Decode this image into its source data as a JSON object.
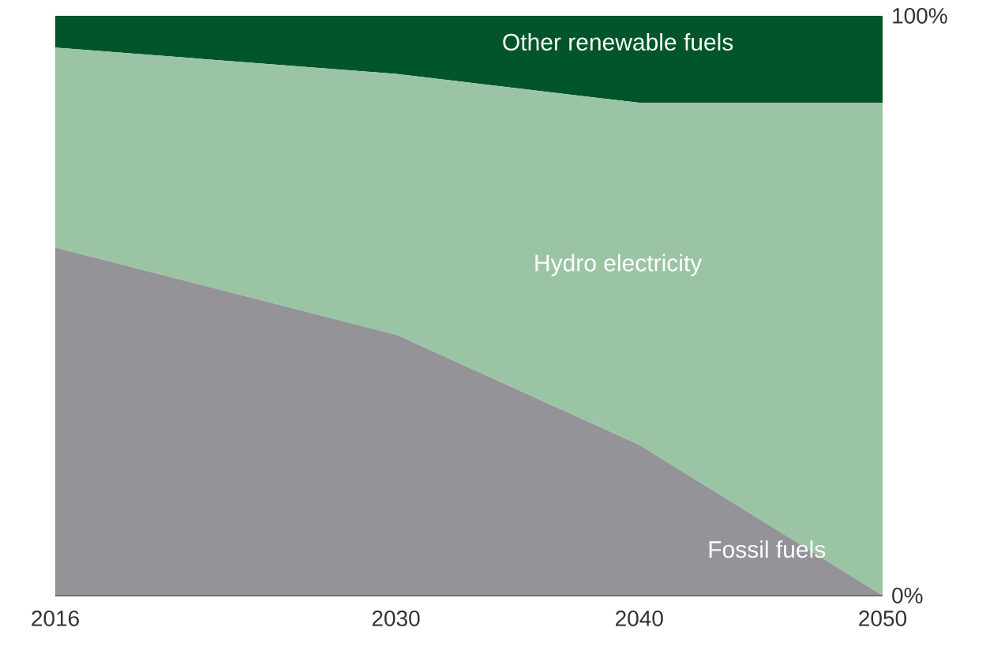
{
  "chart_data": {
    "type": "area",
    "stacked": true,
    "legend": false,
    "grid": false,
    "x": [
      2016,
      2030,
      2040,
      2050
    ],
    "xlim": [
      2016,
      2050
    ],
    "xticks": [
      2016,
      2030,
      2040,
      2050
    ],
    "ylim": [
      0,
      100
    ],
    "yticks": [
      {
        "value": 0,
        "label": "0%"
      },
      {
        "value": 100,
        "label": "100%"
      }
    ],
    "series": [
      {
        "name": "Fossil fuels",
        "color": "#939398",
        "values": [
          60,
          45,
          26,
          0
        ]
      },
      {
        "name": "Hydro electricity",
        "color": "#9bc4a5",
        "values": [
          34.5,
          45,
          59,
          85
        ]
      },
      {
        "name": "Other renewable fuels",
        "color": "#00552b",
        "values": [
          5.5,
          10,
          15,
          15
        ]
      }
    ]
  }
}
